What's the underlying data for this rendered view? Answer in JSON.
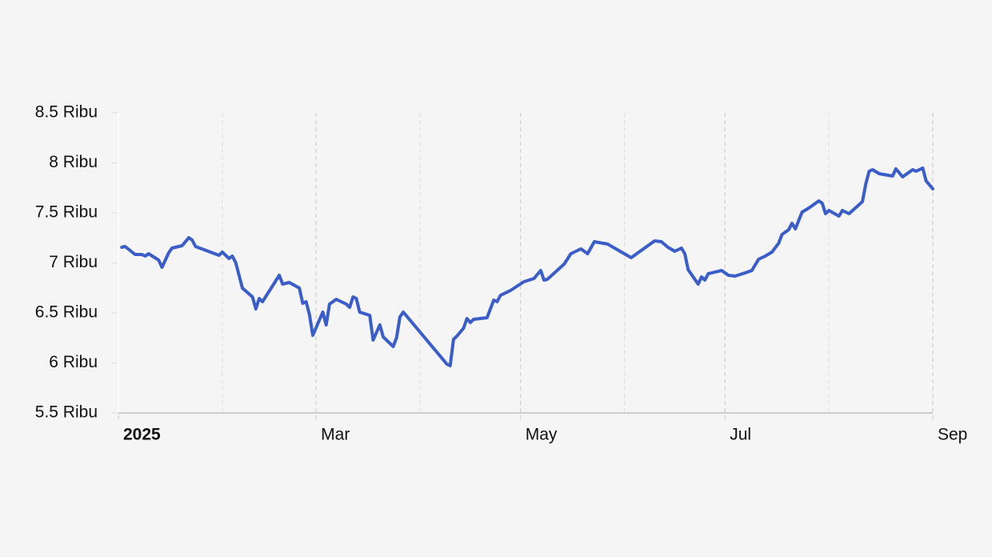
{
  "chart_data": {
    "type": "line",
    "color": "#3a5dc9",
    "x": [
      1,
      2,
      5,
      7,
      8,
      9,
      12,
      13,
      15,
      16,
      19,
      21,
      22,
      23,
      30,
      31,
      33,
      34,
      35,
      37,
      40,
      41,
      42,
      43,
      48,
      49,
      51,
      54,
      55,
      56,
      57,
      58,
      61,
      62,
      63,
      65,
      68,
      69,
      70,
      71,
      72,
      75,
      76,
      78,
      79,
      82,
      83,
      84,
      85,
      98,
      99,
      100,
      101,
      103,
      104,
      105,
      106,
      110,
      112,
      113,
      114,
      117,
      121,
      124,
      126,
      127,
      128,
      133,
      135,
      138,
      140,
      142,
      146,
      153,
      155,
      160,
      162,
      164,
      166,
      168,
      169,
      170,
      173,
      174,
      175,
      176,
      180,
      182,
      184,
      187,
      189,
      191,
      193,
      195,
      197,
      198,
      200,
      201,
      202,
      204,
      206,
      209,
      210,
      211,
      212,
      215,
      216,
      218,
      222,
      223,
      224,
      225,
      227,
      231,
      232,
      234,
      237,
      238,
      240,
      241,
      243
    ],
    "values": [
      7156,
      7164,
      7084,
      7084,
      7068,
      7092,
      7028,
      6956,
      7100,
      7148,
      7172,
      7252,
      7228,
      7164,
      7076,
      7108,
      7044,
      7068,
      7004,
      6748,
      6660,
      6540,
      6644,
      6612,
      6876,
      6788,
      6804,
      6748,
      6596,
      6612,
      6484,
      6276,
      6508,
      6380,
      6588,
      6636,
      6588,
      6556,
      6660,
      6644,
      6508,
      6476,
      6228,
      6380,
      6260,
      6164,
      6252,
      6460,
      6508,
      5988,
      5972,
      6236,
      6268,
      6348,
      6444,
      6404,
      6436,
      6452,
      6628,
      6612,
      6676,
      6724,
      6812,
      6844,
      6924,
      6828,
      6836,
      6988,
      7092,
      7140,
      7092,
      7212,
      7188,
      7052,
      7100,
      7220,
      7212,
      7156,
      7116,
      7148,
      7092,
      6932,
      6788,
      6860,
      6828,
      6892,
      6924,
      6876,
      6868,
      6900,
      6924,
      7036,
      7068,
      7108,
      7196,
      7284,
      7332,
      7396,
      7340,
      7508,
      7548,
      7620,
      7596,
      7492,
      7524,
      7468,
      7524,
      7492,
      7612,
      7788,
      7916,
      7932,
      7892,
      7868,
      7940,
      7860,
      7932,
      7916,
      7948,
      7820,
      7740
    ],
    "xlim": [
      0,
      243
    ],
    "xticks": [
      {
        "value": 0,
        "label": "2025"
      },
      {
        "value": 59,
        "label": "Mar"
      },
      {
        "value": 120,
        "label": "May"
      },
      {
        "value": 181,
        "label": "Jul"
      },
      {
        "value": 243,
        "label": "Sep"
      }
    ],
    "xgrid_minor": [
      31,
      90,
      151,
      212
    ],
    "ylim": [
      5500,
      8500
    ],
    "yticks": [
      {
        "value": 5500,
        "label": "5.5 Ribu"
      },
      {
        "value": 6000,
        "label": "6 Ribu"
      },
      {
        "value": 6500,
        "label": "6.5 Ribu"
      },
      {
        "value": 7000,
        "label": "7 Ribu"
      },
      {
        "value": 7500,
        "label": "7.5 Ribu"
      },
      {
        "value": 8000,
        "label": "8 Ribu"
      },
      {
        "value": 8500,
        "label": "8.5 Ribu"
      }
    ]
  }
}
